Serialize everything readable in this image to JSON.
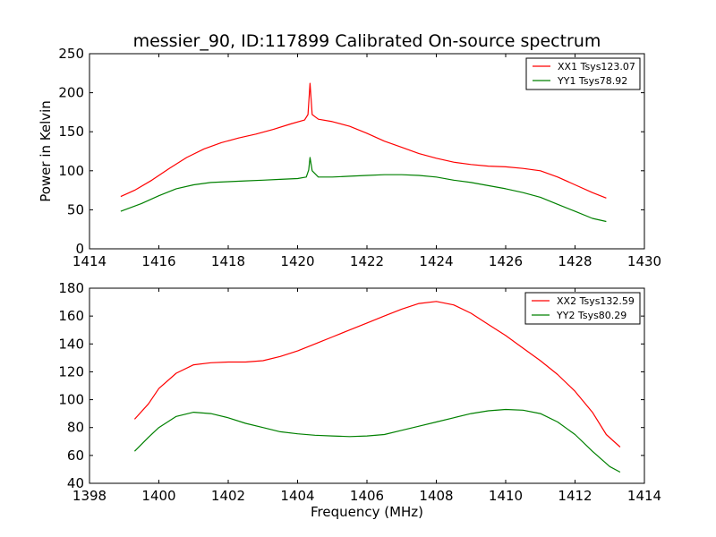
{
  "chart_data": [
    {
      "type": "line",
      "title": "messier_90, ID:117899 Calibrated On-source spectrum",
      "xlabel": "",
      "ylabel": "Power in Kelvin",
      "xlim": [
        1414,
        1430
      ],
      "ylim": [
        0,
        250
      ],
      "xticks": [
        1414,
        1416,
        1418,
        1420,
        1422,
        1424,
        1426,
        1428,
        1430
      ],
      "yticks": [
        0,
        50,
        100,
        150,
        200,
        250
      ],
      "legend": "top-right",
      "grid": false,
      "series": [
        {
          "name": "XX1 Tsys123.07",
          "color": "#ff0000",
          "points": [
            [
              1414.9,
              67
            ],
            [
              1415.3,
              75
            ],
            [
              1415.8,
              88
            ],
            [
              1416.3,
              103
            ],
            [
              1416.8,
              117
            ],
            [
              1417.3,
              128
            ],
            [
              1417.8,
              136
            ],
            [
              1418.3,
              142
            ],
            [
              1418.8,
              147
            ],
            [
              1419.3,
              153
            ],
            [
              1419.8,
              160
            ],
            [
              1420.2,
              165
            ],
            [
              1420.3,
              172
            ],
            [
              1420.36,
              212
            ],
            [
              1420.42,
              172
            ],
            [
              1420.6,
              166
            ],
            [
              1421.0,
              163
            ],
            [
              1421.5,
              157
            ],
            [
              1422.0,
              148
            ],
            [
              1422.5,
              138
            ],
            [
              1423.0,
              130
            ],
            [
              1423.5,
              122
            ],
            [
              1424.0,
              116
            ],
            [
              1424.5,
              111
            ],
            [
              1425.0,
              108
            ],
            [
              1425.5,
              106
            ],
            [
              1426.0,
              105
            ],
            [
              1426.5,
              103
            ],
            [
              1427.0,
              100
            ],
            [
              1427.5,
              92
            ],
            [
              1428.0,
              82
            ],
            [
              1428.5,
              72
            ],
            [
              1428.9,
              65
            ]
          ]
        },
        {
          "name": "YY1 Tsys78.92",
          "color": "#008000",
          "points": [
            [
              1414.9,
              48
            ],
            [
              1415.5,
              58
            ],
            [
              1416.0,
              68
            ],
            [
              1416.5,
              77
            ],
            [
              1417.0,
              82
            ],
            [
              1417.5,
              85
            ],
            [
              1418.0,
              86
            ],
            [
              1418.5,
              87
            ],
            [
              1419.0,
              88
            ],
            [
              1419.5,
              89
            ],
            [
              1420.0,
              90
            ],
            [
              1420.25,
              92
            ],
            [
              1420.32,
              101
            ],
            [
              1420.36,
              117
            ],
            [
              1420.42,
              100
            ],
            [
              1420.6,
              92
            ],
            [
              1421.0,
              92
            ],
            [
              1421.5,
              93
            ],
            [
              1422.0,
              94
            ],
            [
              1422.5,
              95
            ],
            [
              1423.0,
              95
            ],
            [
              1423.5,
              94
            ],
            [
              1424.0,
              92
            ],
            [
              1424.5,
              88
            ],
            [
              1425.0,
              85
            ],
            [
              1425.5,
              81
            ],
            [
              1426.0,
              77
            ],
            [
              1426.5,
              72
            ],
            [
              1427.0,
              66
            ],
            [
              1427.5,
              57
            ],
            [
              1428.0,
              48
            ],
            [
              1428.5,
              39
            ],
            [
              1428.9,
              35
            ]
          ]
        }
      ]
    },
    {
      "type": "line",
      "title": "",
      "xlabel": "Frequency (MHz)",
      "ylabel": "",
      "xlim": [
        1398,
        1414
      ],
      "ylim": [
        40,
        180
      ],
      "xticks": [
        1398,
        1400,
        1402,
        1404,
        1406,
        1408,
        1410,
        1412,
        1414
      ],
      "yticks": [
        40,
        60,
        80,
        100,
        120,
        140,
        160,
        180
      ],
      "legend": "top-right",
      "grid": false,
      "series": [
        {
          "name": "XX2 Tsys132.59",
          "color": "#ff0000",
          "points": [
            [
              1399.3,
              86
            ],
            [
              1399.7,
              97
            ],
            [
              1400.0,
              108
            ],
            [
              1400.5,
              119
            ],
            [
              1401.0,
              125
            ],
            [
              1401.5,
              126.5
            ],
            [
              1402.0,
              127
            ],
            [
              1402.5,
              127
            ],
            [
              1403.0,
              128
            ],
            [
              1403.5,
              131
            ],
            [
              1404.0,
              135
            ],
            [
              1404.5,
              140
            ],
            [
              1405.0,
              145
            ],
            [
              1405.5,
              150
            ],
            [
              1406.0,
              155
            ],
            [
              1406.5,
              160
            ],
            [
              1407.0,
              165
            ],
            [
              1407.5,
              169
            ],
            [
              1408.0,
              170.5
            ],
            [
              1408.5,
              168
            ],
            [
              1409.0,
              162
            ],
            [
              1409.5,
              154
            ],
            [
              1410.0,
              146
            ],
            [
              1410.5,
              137
            ],
            [
              1411.0,
              128
            ],
            [
              1411.5,
              118
            ],
            [
              1412.0,
              106
            ],
            [
              1412.5,
              91
            ],
            [
              1412.9,
              75
            ],
            [
              1413.3,
              66
            ]
          ]
        },
        {
          "name": "YY2 Tsys80.29",
          "color": "#008000",
          "points": [
            [
              1399.3,
              63
            ],
            [
              1399.7,
              73
            ],
            [
              1400.0,
              80
            ],
            [
              1400.5,
              88
            ],
            [
              1401.0,
              91
            ],
            [
              1401.5,
              90
            ],
            [
              1402.0,
              87
            ],
            [
              1402.5,
              83
            ],
            [
              1403.0,
              80
            ],
            [
              1403.5,
              77
            ],
            [
              1404.0,
              75.5
            ],
            [
              1404.5,
              74.5
            ],
            [
              1405.0,
              74
            ],
            [
              1405.5,
              73.5
            ],
            [
              1406.0,
              74
            ],
            [
              1406.5,
              75
            ],
            [
              1407.0,
              78
            ],
            [
              1407.5,
              81
            ],
            [
              1408.0,
              84
            ],
            [
              1408.5,
              87
            ],
            [
              1409.0,
              90
            ],
            [
              1409.5,
              92
            ],
            [
              1410.0,
              93
            ],
            [
              1410.5,
              92.5
            ],
            [
              1411.0,
              90
            ],
            [
              1411.5,
              84
            ],
            [
              1412.0,
              75
            ],
            [
              1412.5,
              63
            ],
            [
              1413.0,
              52
            ],
            [
              1413.3,
              48
            ]
          ]
        }
      ]
    }
  ]
}
